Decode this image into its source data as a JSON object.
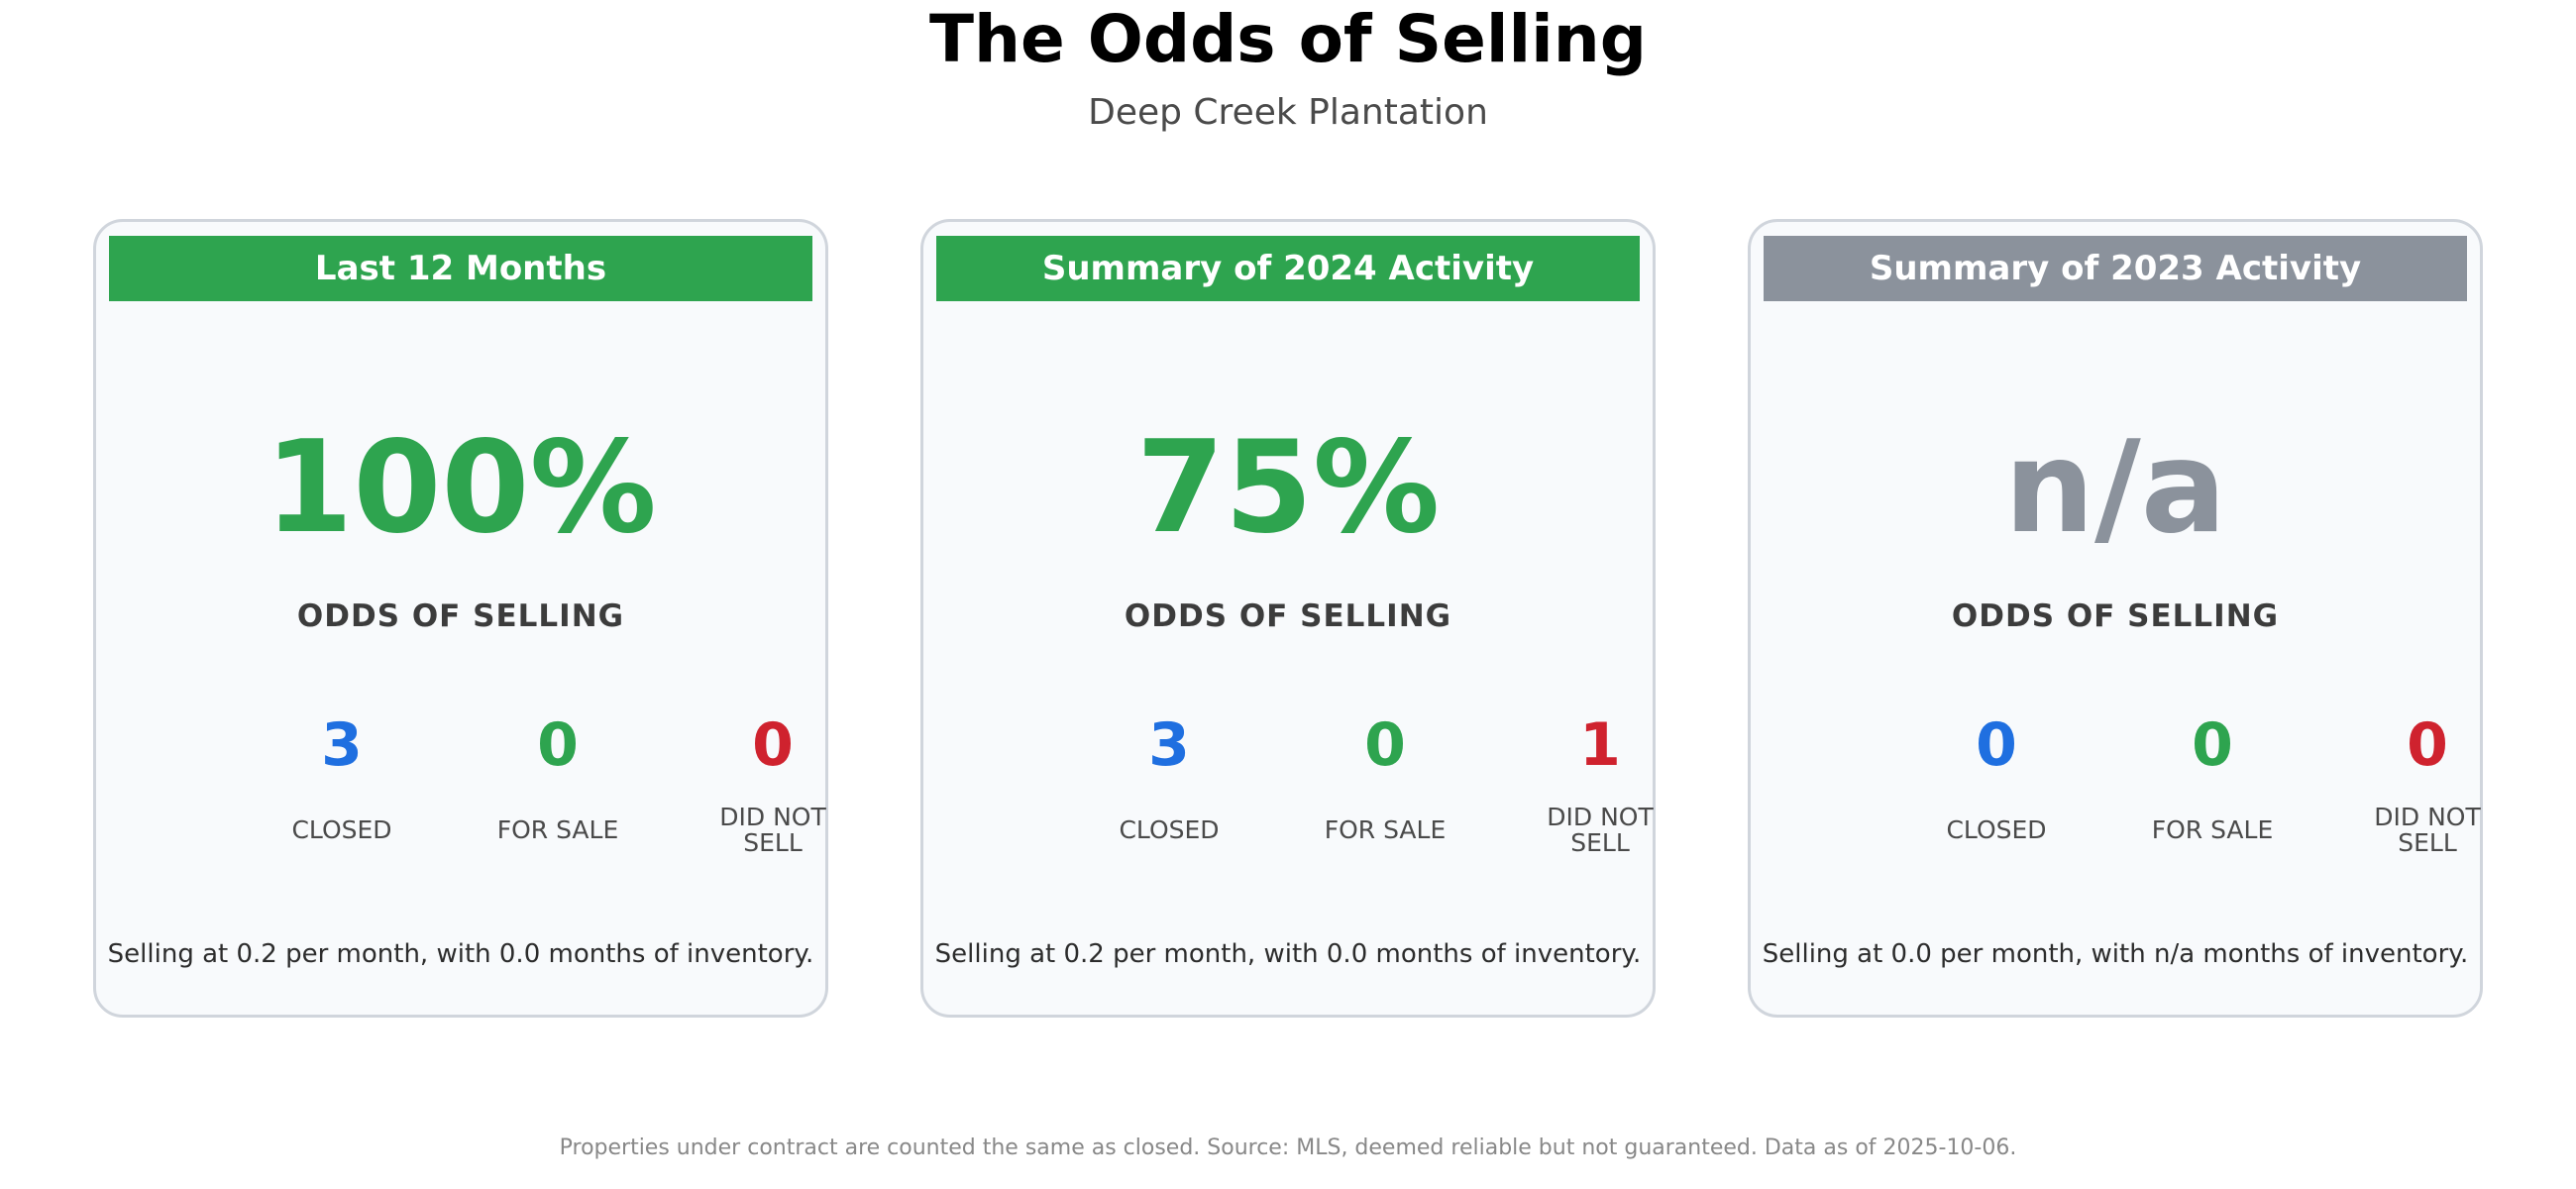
{
  "title": "The Odds of Selling",
  "subtitle": "Deep Creek Plantation",
  "colors": {
    "green": "#2ea44f",
    "gray": "#8b929c",
    "blue": "#1f6fe0",
    "red": "#cf222e"
  },
  "cards": [
    {
      "header": "Last 12 Months",
      "header_color": "#2ea44f",
      "odds": "100%",
      "odds_color": "#2ea44f",
      "odds_label": "ODDS OF SELLING",
      "closed": "3",
      "closed_label": "CLOSED",
      "for_sale": "0",
      "for_sale_label": "FOR SALE",
      "did_not_sell": "0",
      "did_not_sell_label_1": "DID NOT",
      "did_not_sell_label_2": "SELL",
      "summary": "Selling at 0.2 per month, with 0.0 months of inventory."
    },
    {
      "header": "Summary of 2024 Activity",
      "header_color": "#2ea44f",
      "odds": "75%",
      "odds_color": "#2ea44f",
      "odds_label": "ODDS OF SELLING",
      "closed": "3",
      "closed_label": "CLOSED",
      "for_sale": "0",
      "for_sale_label": "FOR SALE",
      "did_not_sell": "1",
      "did_not_sell_label_1": "DID NOT",
      "did_not_sell_label_2": "SELL",
      "summary": "Selling at 0.2 per month, with 0.0 months of inventory."
    },
    {
      "header": "Summary of 2023 Activity",
      "header_color": "#8b929c",
      "odds": "n/a",
      "odds_color": "#8b929c",
      "odds_label": "ODDS OF SELLING",
      "closed": "0",
      "closed_label": "CLOSED",
      "for_sale": "0",
      "for_sale_label": "FOR SALE",
      "did_not_sell": "0",
      "did_not_sell_label_1": "DID NOT",
      "did_not_sell_label_2": "SELL",
      "summary": "Selling at 0.0 per month, with n/a months of inventory."
    }
  ],
  "note": "Properties under contract are counted the same as closed. Source: MLS, deemed reliable but not guaranteed. Data as of 2025-10-06."
}
